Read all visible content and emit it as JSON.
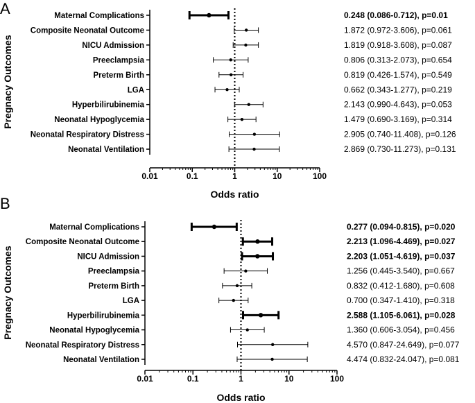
{
  "chart_data": [
    {
      "type": "forest",
      "panel_label": "A",
      "xlabel": "Odds ratio",
      "ylabel": "Pregnacy Outcomes",
      "xscale": "log",
      "xlim": [
        0.01,
        100
      ],
      "ticks": [
        "0.01",
        "0.1",
        "1",
        "10",
        "100"
      ],
      "reference_line": 1,
      "rows": [
        {
          "label": "Maternal Complications",
          "or": 0.248,
          "lo": 0.086,
          "hi": 0.712,
          "text": "0.248 (0.086-0.712), p=0.01",
          "bold": true
        },
        {
          "label": "Composite Neonatal Outcome",
          "or": 1.872,
          "lo": 0.972,
          "hi": 3.606,
          "text": "1.872 (0.972-3.606), p=0.061",
          "bold": false
        },
        {
          "label": "NICU Admission",
          "or": 1.819,
          "lo": 0.918,
          "hi": 3.608,
          "text": "1.819 (0.918-3.608), p=0.087",
          "bold": false
        },
        {
          "label": "Preeclampsia",
          "or": 0.806,
          "lo": 0.313,
          "hi": 2.073,
          "text": "0.806 (0.313-2.073), p=0.654",
          "bold": false
        },
        {
          "label": "Preterm Birth",
          "or": 0.819,
          "lo": 0.426,
          "hi": 1.574,
          "text": "0.819 (0.426-1.574), p=0.549",
          "bold": false
        },
        {
          "label": "LGA",
          "or": 0.662,
          "lo": 0.343,
          "hi": 1.277,
          "text": "0.662 (0.343-1.277), p=0.219",
          "bold": false
        },
        {
          "label": "Hyperbilirubinemia",
          "or": 2.143,
          "lo": 0.99,
          "hi": 4.643,
          "text": "2.143 (0.990-4.643), p=0.053",
          "bold": false
        },
        {
          "label": "Neonatal Hypoglycemia",
          "or": 1.479,
          "lo": 0.69,
          "hi": 3.169,
          "text": "1.479 (0.690-3.169), p=0.314",
          "bold": false
        },
        {
          "label": "Neonatal Respiratory Distress",
          "or": 2.905,
          "lo": 0.74,
          "hi": 11.408,
          "text": "2.905 (0.740-11.408), p=0.126",
          "bold": false
        },
        {
          "label": "Neonatal Ventilation",
          "or": 2.869,
          "lo": 0.73,
          "hi": 11.273,
          "text": "2.869 (0.730-11.273), p=0.131",
          "bold": false
        }
      ]
    },
    {
      "type": "forest",
      "panel_label": "B",
      "xlabel": "Odds ratio",
      "ylabel": "Pregnacy Outcomes",
      "xscale": "log",
      "xlim": [
        0.01,
        100
      ],
      "ticks": [
        "0.01",
        "0.1",
        "1",
        "10",
        "100"
      ],
      "reference_line": 1,
      "rows": [
        {
          "label": "Maternal Complications",
          "or": 0.277,
          "lo": 0.094,
          "hi": 0.815,
          "text": "0.277 (0.094-0.815), p=0.020",
          "bold": true
        },
        {
          "label": "Composite Neonatal Outcome",
          "or": 2.213,
          "lo": 1.096,
          "hi": 4.469,
          "text": "2.213 (1.096-4.469), p=0.027",
          "bold": true
        },
        {
          "label": "NICU Admission",
          "or": 2.203,
          "lo": 1.051,
          "hi": 4.619,
          "text": "2.203 (1.051-4.619), p=0.037",
          "bold": true
        },
        {
          "label": "Preeclampsia",
          "or": 1.256,
          "lo": 0.445,
          "hi": 3.54,
          "text": "1.256 (0.445-3.540), p=0.667",
          "bold": false
        },
        {
          "label": "Preterm Birth",
          "or": 0.832,
          "lo": 0.412,
          "hi": 1.68,
          "text": "0.832 (0.412-1.680), p=0.608",
          "bold": false
        },
        {
          "label": "LGA",
          "or": 0.7,
          "lo": 0.347,
          "hi": 1.41,
          "text": "0.700 (0.347-1.410), p=0.318",
          "bold": false
        },
        {
          "label": "Hyperbilirubinemia",
          "or": 2.588,
          "lo": 1.105,
          "hi": 6.061,
          "text": "2.588 (1.105-6.061), p=0.028",
          "bold": true
        },
        {
          "label": "Neonatal Hypoglycemia",
          "or": 1.36,
          "lo": 0.606,
          "hi": 3.054,
          "text": "1.360 (0.606-3.054), p=0.456",
          "bold": false
        },
        {
          "label": "Neonatal Respiratory Distress",
          "or": 4.57,
          "lo": 0.847,
          "hi": 24.649,
          "text": "4.570 (0.847-24.649), p=0.077",
          "bold": false
        },
        {
          "label": "Neonatal Ventilation",
          "or": 4.474,
          "lo": 0.832,
          "hi": 24.047,
          "text": "4.474 (0.832-24.047), p=0.081",
          "bold": false
        }
      ]
    }
  ]
}
